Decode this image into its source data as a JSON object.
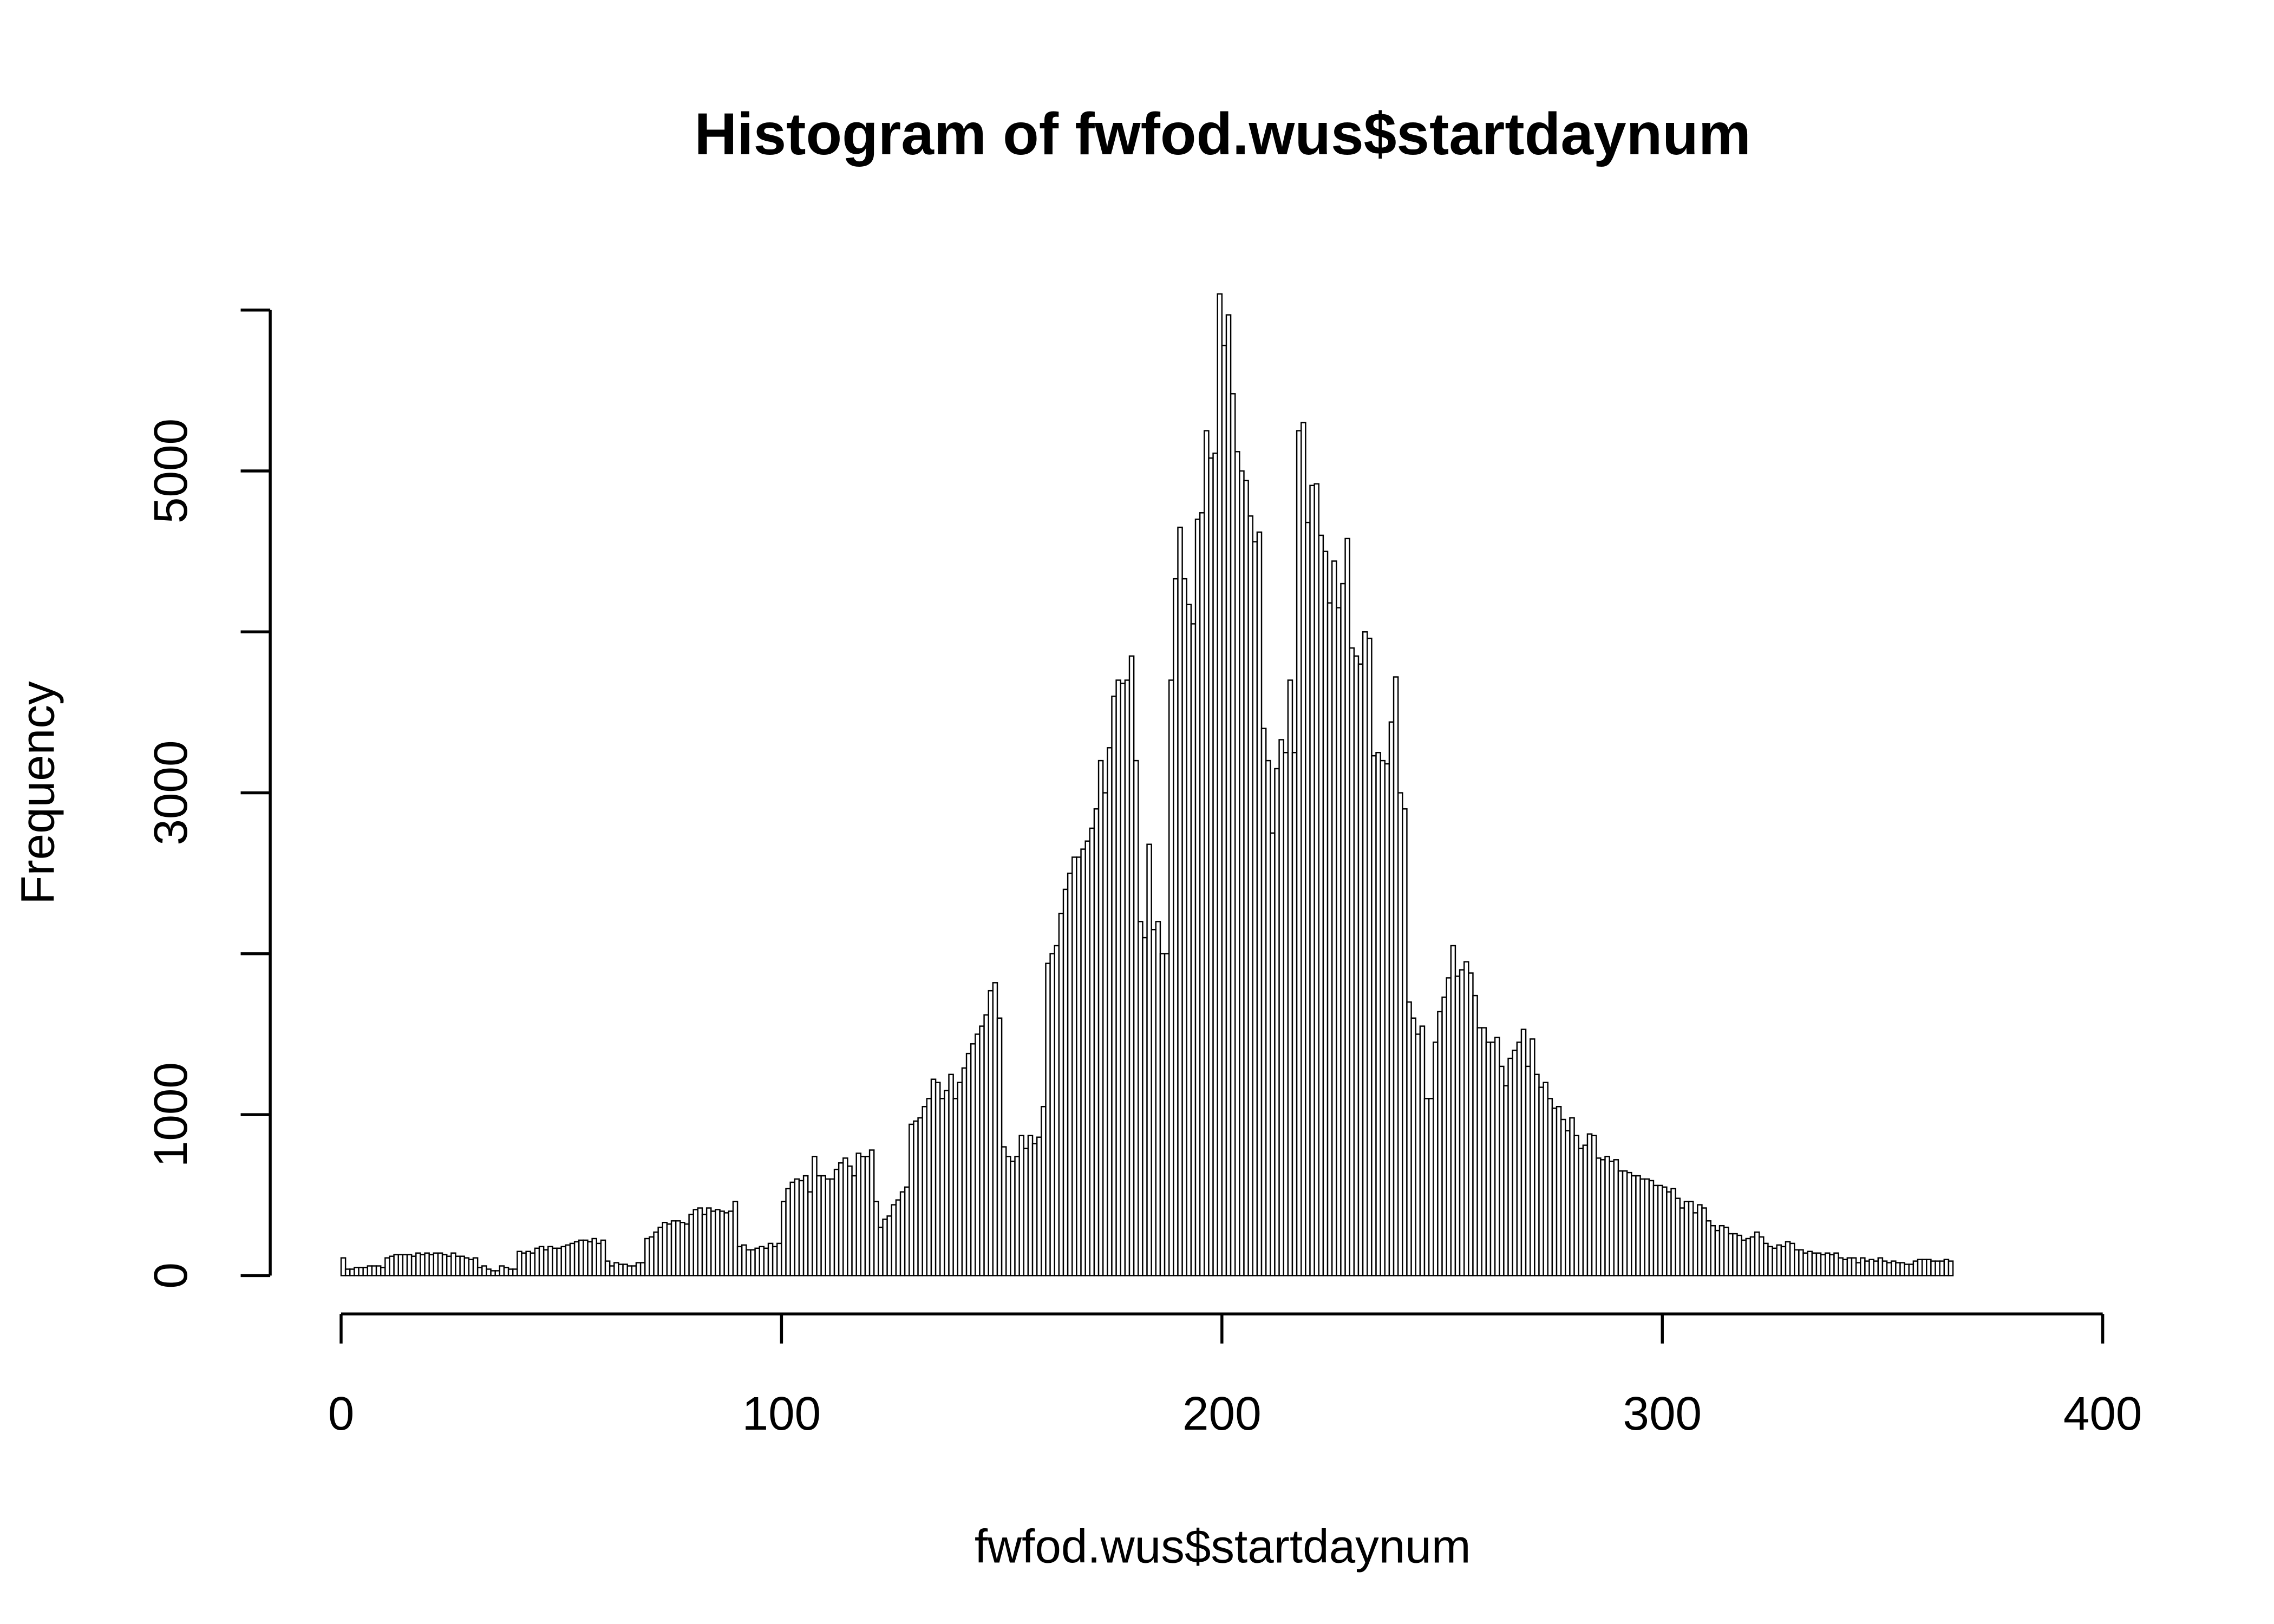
{
  "chart_data": {
    "type": "histogram",
    "title": "Histogram of fwfod.wus$startdaynum",
    "x_label": "fwfod.wus$startdaynum",
    "y_label": "Frequency",
    "bins": [
      0,
      1,
      2,
      3,
      4,
      5,
      6,
      7,
      8,
      9,
      10,
      11,
      12,
      13,
      14,
      15,
      16,
      17,
      18,
      19,
      20,
      21,
      22,
      23,
      24,
      25,
      26,
      27,
      28,
      29,
      30,
      31,
      32,
      33,
      34,
      35,
      36,
      37,
      38,
      39,
      40,
      41,
      42,
      43,
      44,
      45,
      46,
      47,
      48,
      49,
      50,
      51,
      52,
      53,
      54,
      55,
      56,
      57,
      58,
      59,
      60,
      61,
      62,
      63,
      64,
      65,
      66,
      67,
      68,
      69,
      70,
      71,
      72,
      73,
      74,
      75,
      76,
      77,
      78,
      79,
      80,
      81,
      82,
      83,
      84,
      85,
      86,
      87,
      88,
      89,
      90,
      91,
      92,
      93,
      94,
      95,
      96,
      97,
      98,
      99,
      100,
      101,
      102,
      103,
      104,
      105,
      106,
      107,
      108,
      109,
      110,
      111,
      112,
      113,
      114,
      115,
      116,
      117,
      118,
      119,
      120,
      121,
      122,
      123,
      124,
      125,
      126,
      127,
      128,
      129,
      130,
      131,
      132,
      133,
      134,
      135,
      136,
      137,
      138,
      139,
      140,
      141,
      142,
      143,
      144,
      145,
      146,
      147,
      148,
      149,
      150,
      151,
      152,
      153,
      154,
      155,
      156,
      157,
      158,
      159,
      160,
      161,
      162,
      163,
      164,
      165,
      166,
      167,
      168,
      169,
      170,
      171,
      172,
      173,
      174,
      175,
      176,
      177,
      178,
      179,
      180,
      181,
      182,
      183,
      184,
      185,
      186,
      187,
      188,
      189,
      190,
      191,
      192,
      193,
      194,
      195,
      196,
      197,
      198,
      199,
      200,
      201,
      202,
      203,
      204,
      205,
      206,
      207,
      208,
      209,
      210,
      211,
      212,
      213,
      214,
      215,
      216,
      217,
      218,
      219,
      220,
      221,
      222,
      223,
      224,
      225,
      226,
      227,
      228,
      229,
      230,
      231,
      232,
      233,
      234,
      235,
      236,
      237,
      238,
      239,
      240,
      241,
      242,
      243,
      244,
      245,
      246,
      247,
      248,
      249,
      250,
      251,
      252,
      253,
      254,
      255,
      256,
      257,
      258,
      259,
      260,
      261,
      262,
      263,
      264,
      265,
      266,
      267,
      268,
      269,
      270,
      271,
      272,
      273,
      274,
      275,
      276,
      277,
      278,
      279,
      280,
      281,
      282,
      283,
      284,
      285,
      286,
      287,
      288,
      289,
      290,
      291,
      292,
      293,
      294,
      295,
      296,
      297,
      298,
      299,
      300,
      301,
      302,
      303,
      304,
      305,
      306,
      307,
      308,
      309,
      310,
      311,
      312,
      313,
      314,
      315,
      316,
      317,
      318,
      319,
      320,
      321,
      322,
      323,
      324,
      325,
      326,
      327,
      328,
      329,
      330,
      331,
      332,
      333,
      334,
      335,
      336,
      337,
      338,
      339,
      340,
      341,
      342,
      343,
      344,
      345,
      346,
      347,
      348,
      349,
      350,
      351,
      352,
      353,
      354,
      355,
      356,
      357,
      358,
      359,
      360,
      361,
      362,
      363,
      364,
      365,
      366
    ],
    "values": [
      110,
      40,
      40,
      50,
      50,
      50,
      60,
      60,
      60,
      50,
      110,
      120,
      130,
      130,
      130,
      130,
      120,
      140,
      130,
      140,
      130,
      140,
      140,
      130,
      120,
      140,
      120,
      120,
      110,
      100,
      110,
      50,
      60,
      40,
      30,
      30,
      60,
      50,
      40,
      40,
      150,
      140,
      150,
      140,
      170,
      180,
      160,
      180,
      170,
      170,
      180,
      190,
      200,
      210,
      220,
      220,
      210,
      230,
      200,
      220,
      90,
      60,
      80,
      70,
      70,
      60,
      60,
      80,
      80,
      230,
      240,
      270,
      300,
      330,
      320,
      340,
      340,
      330,
      320,
      380,
      410,
      420,
      380,
      420,
      400,
      410,
      400,
      390,
      400,
      460,
      180,
      190,
      160,
      160,
      170,
      180,
      170,
      200,
      180,
      200,
      460,
      540,
      580,
      600,
      590,
      620,
      520,
      740,
      620,
      620,
      600,
      600,
      660,
      700,
      730,
      680,
      620,
      760,
      740,
      740,
      780,
      460,
      300,
      350,
      370,
      440,
      470,
      520,
      550,
      940,
      960,
      980,
      1050,
      1100,
      1220,
      1200,
      1100,
      1150,
      1250,
      1100,
      1200,
      1290,
      1380,
      1440,
      1500,
      1550,
      1620,
      1770,
      1820,
      1600,
      800,
      740,
      710,
      740,
      870,
      790,
      870,
      820,
      860,
      1050,
      1940,
      2000,
      2050,
      2250,
      2400,
      2500,
      2600,
      2600,
      2650,
      2700,
      2780,
      2900,
      3200,
      3000,
      3280,
      3600,
      3700,
      3680,
      3700,
      3850,
      3200,
      2200,
      2100,
      2680,
      2150,
      2200,
      2000,
      2000,
      3700,
      4330,
      4650,
      4330,
      4170,
      4050,
      4700,
      4740,
      5250,
      5080,
      5110,
      6100,
      5780,
      5970,
      5480,
      5120,
      5000,
      4940,
      4720,
      4560,
      4620,
      3400,
      3200,
      2750,
      3150,
      3330,
      3250,
      3700,
      3250,
      5250,
      5300,
      4680,
      4910,
      4920,
      4600,
      4500,
      4180,
      4440,
      4150,
      4300,
      4580,
      3900,
      3850,
      3800,
      4000,
      3960,
      3230,
      3250,
      3200,
      3180,
      3440,
      3720,
      3000,
      2900,
      1700,
      1600,
      1500,
      1550,
      1100,
      1100,
      1450,
      1640,
      1730,
      1850,
      2050,
      1860,
      1900,
      1950,
      1880,
      1740,
      1540,
      1540,
      1450,
      1450,
      1480,
      1300,
      1180,
      1350,
      1400,
      1450,
      1530,
      1300,
      1470,
      1250,
      1170,
      1200,
      1100,
      1040,
      1050,
      970,
      900,
      980,
      870,
      790,
      810,
      880,
      870,
      730,
      720,
      740,
      710,
      720,
      650,
      650,
      640,
      620,
      620,
      600,
      600,
      590,
      560,
      560,
      550,
      520,
      540,
      480,
      420,
      460,
      460,
      390,
      440,
      420,
      340,
      310,
      280,
      310,
      300,
      260,
      260,
      250,
      220,
      230,
      240,
      270,
      240,
      200,
      180,
      170,
      190,
      180,
      210,
      200,
      160,
      160,
      140,
      150,
      140,
      140,
      130,
      140,
      130,
      140,
      110,
      100,
      110,
      110,
      80,
      110,
      90,
      100,
      90,
      110,
      90,
      80,
      90,
      80,
      80,
      70,
      70,
      90,
      100,
      100,
      100,
      90,
      90,
      90,
      100,
      90
    ],
    "color": "#ffffff",
    "border_color": "#000000",
    "xlim": [
      0,
      400
    ],
    "xticks": [
      0,
      100,
      200,
      300,
      400
    ],
    "ylim": [
      0,
      6000
    ],
    "yticks": [
      0,
      1000,
      2000,
      3000,
      4000,
      5000,
      6000
    ]
  }
}
